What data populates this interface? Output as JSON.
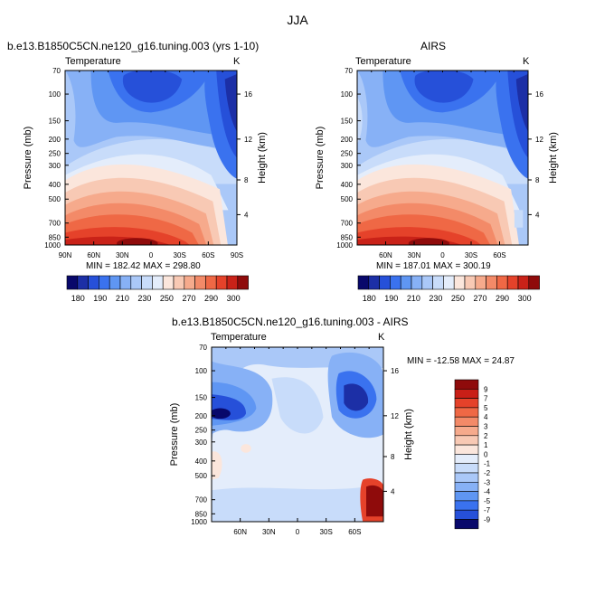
{
  "page_title": "JJA",
  "panels": {
    "model": {
      "title": "b.e13.B1850C5CN.ne120_g16.tuning.003 (yrs 1-10)",
      "variable": "Temperature",
      "units": "K",
      "minmax": "MIN = 182.42   MAX = 298.80"
    },
    "obs": {
      "title": "AIRS",
      "variable": "Temperature",
      "units": "K",
      "minmax": "MIN = 187.01   MAX = 300.19"
    },
    "diff": {
      "title": "b.e13.B1850C5CN.ne120_g16.tuning.003 - AIRS",
      "variable": "Temperature",
      "units": "K",
      "minmax": "MIN = -12.58   MAX =  24.87"
    }
  },
  "chart_data": [
    {
      "type": "heatmap",
      "title": "b.e13.B1850C5CN.ne120_g16.tuning.003 (yrs 1-10)",
      "subtitle": "Temperature",
      "xlabel": "",
      "ylabel": "Pressure (mb)",
      "y2label": "Height (km)",
      "units": "K",
      "x_ticks": [
        "90N",
        "60N",
        "30N",
        "0",
        "30S",
        "60S",
        "90S"
      ],
      "y_ticks": [
        "70",
        "100",
        "150",
        "200",
        "250",
        "300",
        "400",
        "500",
        "700",
        "850",
        "1000"
      ],
      "y2_ticks": [
        "16",
        "12",
        "8",
        "4"
      ],
      "min": 182.42,
      "max": 298.8,
      "colorbar_levels": [
        "180",
        "190",
        "210",
        "230",
        "250",
        "270",
        "290",
        "300"
      ]
    },
    {
      "type": "heatmap",
      "title": "AIRS",
      "subtitle": "Temperature",
      "xlabel": "",
      "ylabel": "Pressure (mb)",
      "y2label": "Height (km)",
      "units": "K",
      "x_ticks": [
        "60N",
        "30N",
        "0",
        "30S",
        "60S"
      ],
      "y_ticks": [
        "70",
        "100",
        "150",
        "200",
        "250",
        "300",
        "400",
        "500",
        "700",
        "850",
        "1000"
      ],
      "y2_ticks": [
        "16",
        "12",
        "8",
        "4"
      ],
      "min": 187.01,
      "max": 300.19,
      "colorbar_levels": [
        "180",
        "190",
        "210",
        "230",
        "250",
        "270",
        "290",
        "300"
      ]
    },
    {
      "type": "heatmap",
      "title": "b.e13.B1850C5CN.ne120_g16.tuning.003 - AIRS",
      "subtitle": "Temperature",
      "xlabel": "",
      "ylabel": "Pressure (mb)",
      "y2label": "Height (km)",
      "units": "K",
      "x_ticks": [
        "60N",
        "30N",
        "0",
        "30S",
        "60S"
      ],
      "y_ticks": [
        "70",
        "100",
        "150",
        "200",
        "250",
        "300",
        "400",
        "500",
        "700",
        "850",
        "1000"
      ],
      "y2_ticks": [
        "16",
        "12",
        "8",
        "4"
      ],
      "min": -12.58,
      "max": 24.87,
      "colorbar_levels": [
        "9",
        "7",
        "5",
        "4",
        "3",
        "2",
        "1",
        "0",
        "-1",
        "-2",
        "-3",
        "-4",
        "-5",
        "-7",
        "-9"
      ]
    }
  ],
  "colors": {
    "abs_scale": [
      "#08086b",
      "#1c2fa6",
      "#2650d9",
      "#3a72ef",
      "#5f96f3",
      "#87b1f6",
      "#aac8f8",
      "#c8dcfa",
      "#e4edfb",
      "#fbe6dc",
      "#f8c9b4",
      "#f6aa8c",
      "#f38a68",
      "#ef6845",
      "#e5422a",
      "#c92218",
      "#8f0b0b"
    ],
    "diff_scale": [
      "#8f0b0b",
      "#c91f17",
      "#e5422a",
      "#ef6845",
      "#f38a68",
      "#f6aa8c",
      "#f8c9b4",
      "#fbe6dc",
      "#e4edfb",
      "#c8dcfa",
      "#aac8f8",
      "#87b1f6",
      "#5f96f3",
      "#3a72ef",
      "#2650d9",
      "#1c2fa6",
      "#08086b"
    ]
  }
}
